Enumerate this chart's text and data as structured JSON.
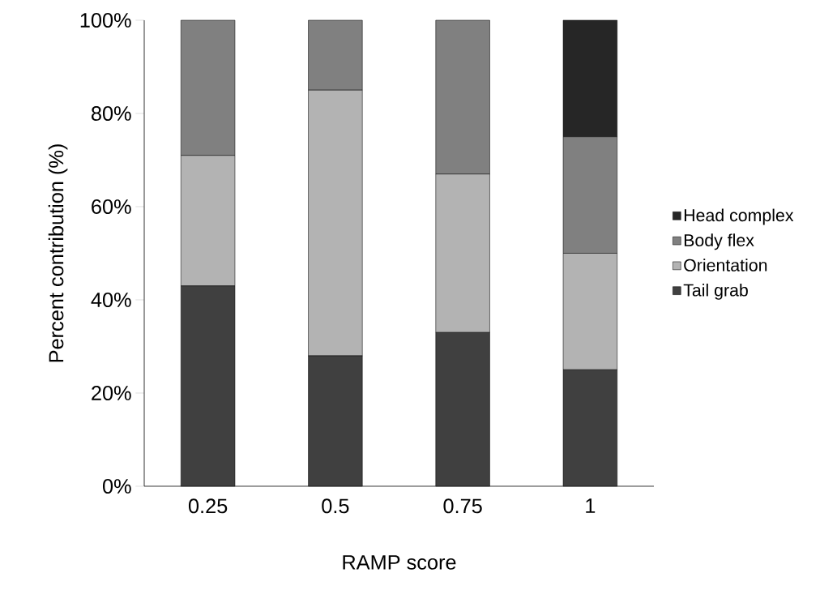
{
  "chart_data": {
    "type": "bar",
    "stacked": true,
    "xlabel": "RAMP score",
    "ylabel": "Percent contribution (%)",
    "categories": [
      "0.25",
      "0.5",
      "0.75",
      "1"
    ],
    "series": [
      {
        "name": "Tail grab",
        "color": "#404040",
        "values": [
          43,
          28,
          33,
          25
        ]
      },
      {
        "name": "Orientation",
        "color": "#b3b3b3",
        "values": [
          28,
          57,
          34,
          25
        ]
      },
      {
        "name": "Body flex",
        "color": "#808080",
        "values": [
          29,
          15,
          33,
          25
        ]
      },
      {
        "name": "Head complex",
        "color": "#262626",
        "values": [
          0,
          0,
          0,
          25
        ]
      }
    ],
    "ylim": [
      0,
      100
    ],
    "yticks": [
      {
        "value": 0,
        "label": "0%"
      },
      {
        "value": 20,
        "label": "20%"
      },
      {
        "value": 40,
        "label": "40%"
      },
      {
        "value": 60,
        "label": "60%"
      },
      {
        "value": 80,
        "label": "80%"
      },
      {
        "value": 100,
        "label": "100%"
      }
    ],
    "grid": false,
    "legend": "right"
  }
}
